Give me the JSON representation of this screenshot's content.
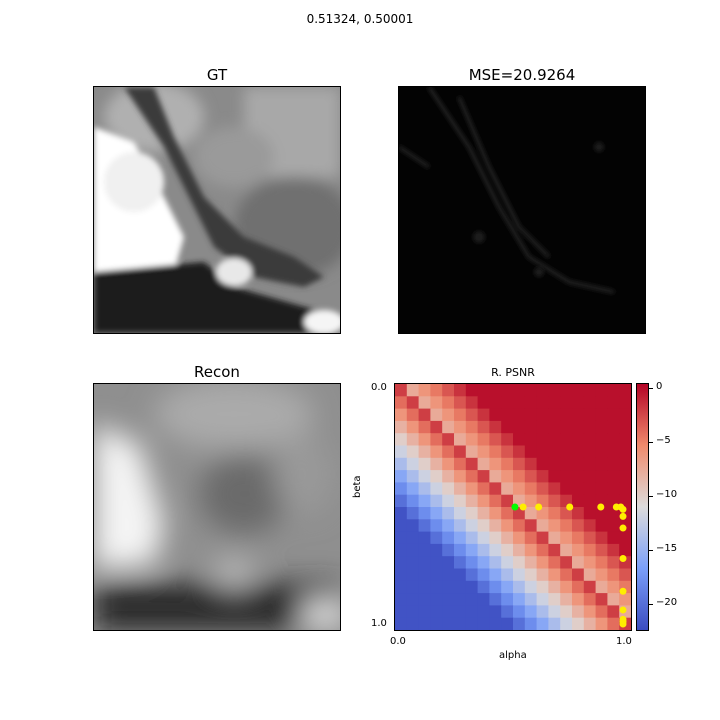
{
  "figure": {
    "suptitle": "0.51324, 0.50001"
  },
  "panels": {
    "gt": {
      "title": "GT"
    },
    "mse": {
      "title": "MSE=20.9264"
    },
    "recon": {
      "title": "Recon"
    }
  },
  "chart_data": {
    "type": "heatmap",
    "title": "R. PSNR",
    "xlabel": "alpha",
    "ylabel": "beta",
    "x_ticks": [
      "0.0",
      "1.0"
    ],
    "y_ticks": [
      "0.0",
      "1.0"
    ],
    "xlim": [
      0.0,
      1.0
    ],
    "ylim": [
      0.0,
      1.0
    ],
    "y_inverted": true,
    "grid": "20x20",
    "colormap": "coolwarm",
    "colorbar": {
      "ticks": [
        0,
        -5,
        -10,
        -15,
        -20
      ],
      "tick_labels": [
        "0",
        "−5",
        "−10",
        "−15",
        "−20"
      ],
      "vmin": -22.5,
      "vmax": 0.5
    },
    "points_yellow": [
      [
        0.55,
        0.5
      ],
      [
        0.62,
        0.5
      ],
      [
        0.76,
        0.5
      ],
      [
        0.9,
        0.5
      ],
      [
        0.97,
        0.5
      ],
      [
        0.99,
        0.5
      ],
      [
        1.0,
        0.51
      ],
      [
        1.0,
        0.54
      ],
      [
        1.0,
        0.59
      ],
      [
        1.0,
        0.72
      ],
      [
        1.0,
        0.86
      ],
      [
        1.0,
        0.94
      ],
      [
        1.0,
        0.98
      ],
      [
        1.0,
        0.99
      ],
      [
        1.0,
        1.0
      ]
    ],
    "point_green": [
      0.51324,
      0.50001
    ],
    "colors": {
      "yellow": "#ffee00",
      "green": "#00ff00"
    }
  }
}
